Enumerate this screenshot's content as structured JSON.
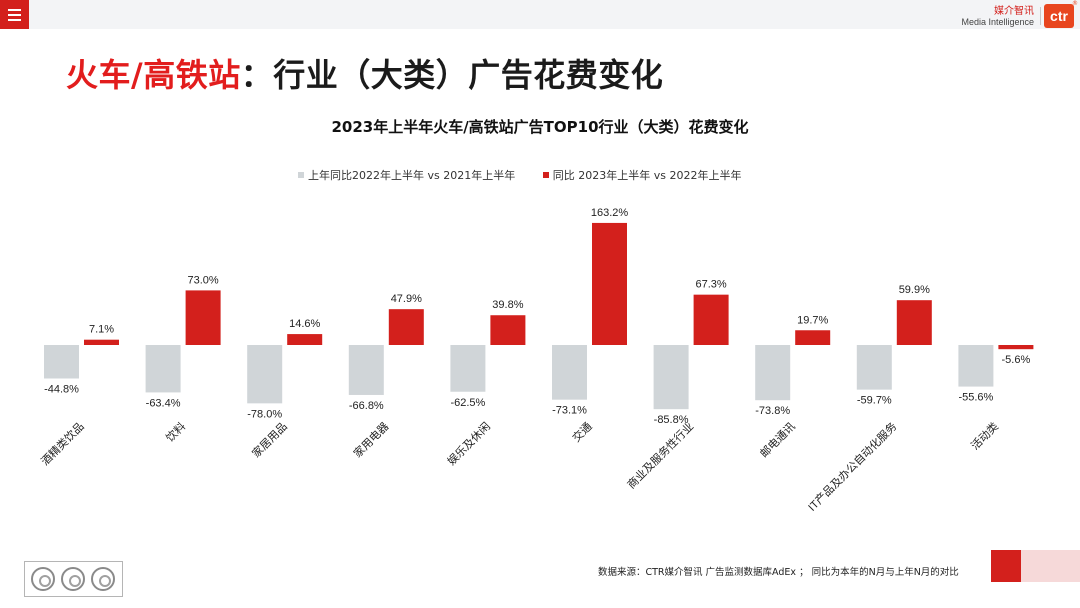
{
  "header": {
    "brand_cn": "媒介智讯",
    "brand_en": "Media Intelligence",
    "logo_text": "ctr",
    "logo_reg": "®"
  },
  "slide": {
    "title_highlight": "火车/高铁站",
    "title_rest": "：行业（大类）广告花费变化"
  },
  "footer": {
    "source": "数据来源：CTR媒介智讯 广告监测数据库AdEx ； 同比为本年的N月与上年N月的对比",
    "cert_mark": "SGS"
  },
  "colors": {
    "accent": "#d3201c",
    "prior_series": "#d0d5d8",
    "current_series": "#d3201c"
  },
  "chart_data": {
    "type": "bar",
    "title": "2023年上半年火车/高铁站广告TOP10行业（大类）花费变化",
    "xlabel": "",
    "ylabel": "",
    "categories": [
      "酒精类饮品",
      "饮料",
      "家居用品",
      "家用电器",
      "娱乐及休闲",
      "交通",
      "商业及服务性行业",
      "邮电通讯",
      "IT产品及办公自动化服务",
      "活动类"
    ],
    "series": [
      {
        "name": "上年同比2022年上半年  vs  2021年上半年",
        "color": "#d0d5d8",
        "values": [
          -44.8,
          -63.4,
          -78.0,
          -66.8,
          -62.5,
          -73.1,
          -85.8,
          -73.8,
          -59.7,
          -55.6
        ],
        "labels": [
          "-44.8%",
          "-63.4%",
          "-78.0%",
          "-66.8%",
          "-62.5%",
          "-73.1%",
          "-85.8%",
          "-73.8%",
          "-59.7%",
          "-55.6%"
        ]
      },
      {
        "name": "同比 2023年上半年  vs  2022年上半年",
        "color": "#d3201c",
        "values": [
          7.1,
          73.0,
          14.6,
          47.9,
          39.8,
          163.2,
          67.3,
          19.7,
          59.9,
          -5.6
        ],
        "labels": [
          "7.1%",
          "73.0%",
          "14.6%",
          "47.9%",
          "39.8%",
          "163.2%",
          "67.3%",
          "19.7%",
          "59.9%",
          "-5.6%"
        ]
      }
    ],
    "ylim": [
      -100,
      170
    ],
    "grid": false,
    "legend": "top"
  }
}
